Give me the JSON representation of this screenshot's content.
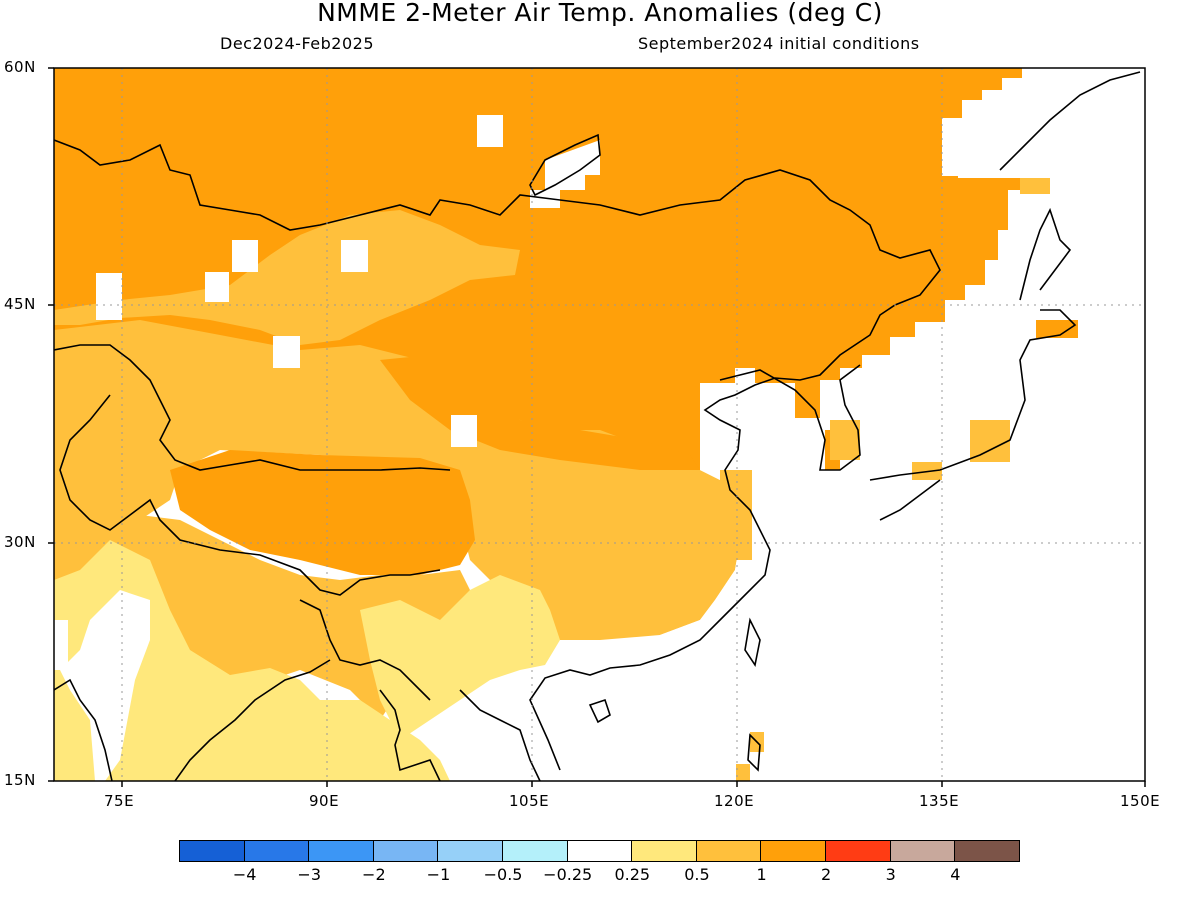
{
  "header": {
    "title": "NMME 2-Meter Air Temp. Anomalies (deg C)",
    "period": "Dec2024-Feb2025",
    "initial_conditions": "September2024 initial conditions"
  },
  "axes": {
    "lat_labels": [
      "60N",
      "45N",
      "30N",
      "15N"
    ],
    "lon_labels": [
      "75E",
      "90E",
      "105E",
      "120E",
      "135E",
      "150E"
    ]
  },
  "colorbar": {
    "colors": [
      "#1560d6",
      "#2878e8",
      "#3c96f5",
      "#78b6f4",
      "#96d0f8",
      "#b4f0fa",
      "#ffffff",
      "#ffe87c",
      "#ffc03c",
      "#ffa00a",
      "#ff3c14",
      "#c8a89c",
      "#7c5448"
    ],
    "labels": [
      "-4",
      "-3",
      "-2",
      "-1",
      "-0.5",
      "-0.25",
      "0.25",
      "0.5",
      "1",
      "2",
      "3",
      "4"
    ]
  },
  "anomaly_colors": {
    "strong": "#ffa00a",
    "moderate": "#ffc03c",
    "weak": "#ffe87c",
    "neutral": "#ffffff"
  }
}
